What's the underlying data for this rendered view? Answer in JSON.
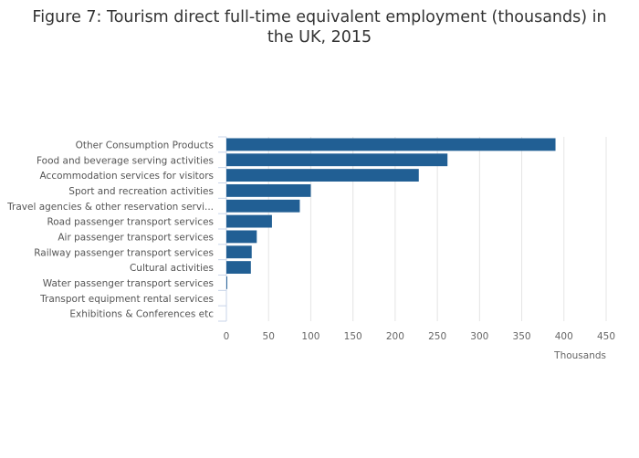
{
  "chart_data": {
    "type": "bar",
    "orientation": "horizontal",
    "title_line1": "Figure 7: Tourism direct full-time equivalent employment (thousands) in",
    "title_line2": "the UK, 2015",
    "xlabel": "Thousands",
    "ylabel": "",
    "xlim": [
      0,
      450
    ],
    "xticks": [
      0,
      50,
      100,
      150,
      200,
      250,
      300,
      350,
      400,
      450
    ],
    "grid": true,
    "color": "#215f94",
    "categories": [
      "Other Consumption Products",
      "Food and beverage serving activities",
      "Accommodation services for visitors",
      "Sport and recreation activities",
      "Travel agencies & other reservation servi...",
      "Road passenger transport services",
      "Air passenger transport services",
      "Railway passenger transport services",
      "Cultural activities",
      "Water passenger transport services",
      "Transport equipment rental services",
      "Exhibitions & Conferences etc"
    ],
    "values": [
      390,
      262,
      228,
      100,
      87,
      54,
      36,
      30,
      29,
      1,
      0,
      0
    ]
  }
}
